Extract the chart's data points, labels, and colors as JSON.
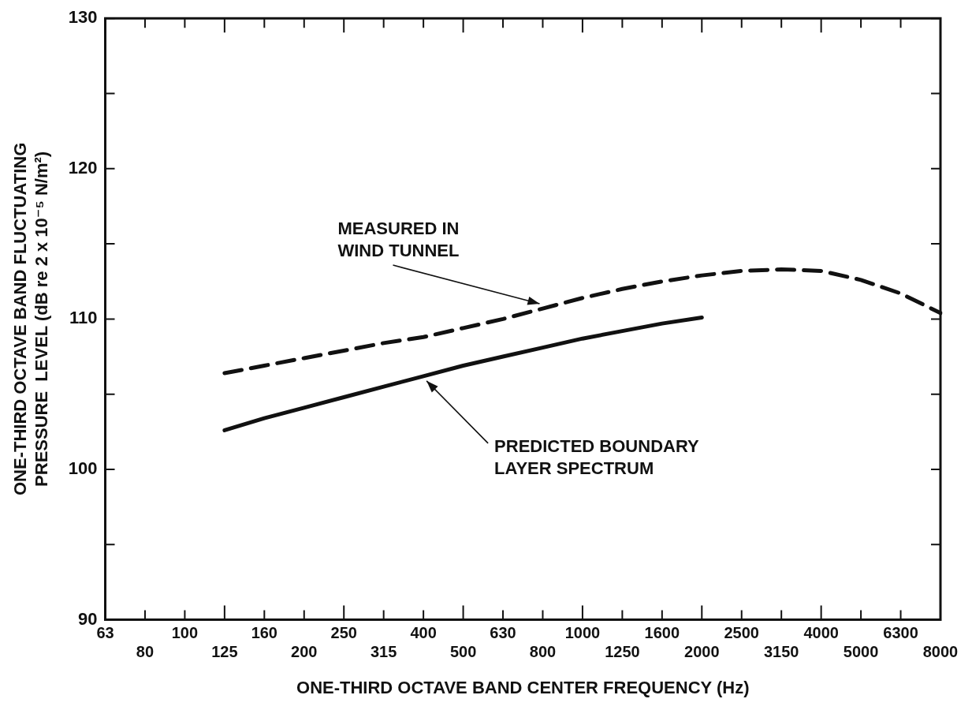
{
  "chart_data": {
    "type": "line",
    "xlabel": "ONE-THIRD OCTAVE BAND CENTER FREQUENCY (Hz)",
    "ylabel": "ONE-THIRD OCTAVE BAND FLUCTUATING\nPRESSURE  LEVEL (dB re 2 x 10⁻⁵ N/m²)",
    "categories": [
      "63",
      "80",
      "100",
      "125",
      "160",
      "200",
      "250",
      "315",
      "400",
      "500",
      "630",
      "800",
      "1000",
      "1250",
      "1600",
      "2000",
      "2500",
      "3150",
      "4000",
      "5000",
      "6300",
      "8000"
    ],
    "series": [
      {
        "color": "#111111",
        "line_style": "dashed",
        "values": [
          null,
          null,
          null,
          106.4,
          106.9,
          107.4,
          107.9,
          108.4,
          108.8,
          109.4,
          110.0,
          110.7,
          111.4,
          112.0,
          112.5,
          112.9,
          113.2,
          113.3,
          113.2,
          112.6,
          111.7,
          110.4
        ]
      },
      {
        "color": "#111111",
        "line_style": "solid",
        "values": [
          null,
          null,
          null,
          102.6,
          103.4,
          104.1,
          104.8,
          105.5,
          106.2,
          106.9,
          107.5,
          108.1,
          108.7,
          109.2,
          109.7,
          110.1,
          null,
          null,
          null,
          null,
          null,
          null
        ]
      }
    ],
    "ylim": [
      90,
      130
    ],
    "yticks": [
      90,
      {
        "value": 95,
        "label": null
      },
      100,
      {
        "value": 105,
        "label": null
      },
      110,
      {
        "value": 115,
        "label": null
      },
      120,
      {
        "value": 125,
        "label": null
      },
      130
    ],
    "marker": "none",
    "legend": false,
    "grid": false,
    "annotations": [
      {
        "text": "MEASURED IN\nWIND TUNNEL",
        "x": "800",
        "y": 110.7
      },
      {
        "text": "PREDICTED BOUNDARY\nLAYER SPECTRUM",
        "x": "400",
        "y": 106.2
      }
    ]
  }
}
